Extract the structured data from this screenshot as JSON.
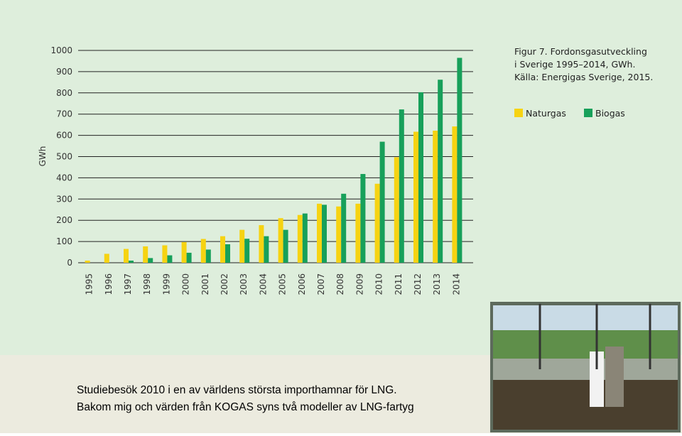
{
  "chart_data": {
    "type": "bar",
    "title_lines": [
      "Figur 7. Fordonsgasutveckling",
      "i Sverige 1995–2014, GWh.",
      "Källa: Energigas Sverige, 2015."
    ],
    "ylabel": "GWh",
    "categories": [
      "1995",
      "1996",
      "1997",
      "1998",
      "1999",
      "2000",
      "2001",
      "2002",
      "2003",
      "2004",
      "2005",
      "2006",
      "2007",
      "2008",
      "2009",
      "2010",
      "2011",
      "2012",
      "2013",
      "2014"
    ],
    "series": [
      {
        "name": "Naturgas",
        "color": "#f6d312",
        "values": [
          10,
          42,
          65,
          77,
          82,
          97,
          112,
          125,
          155,
          177,
          210,
          225,
          278,
          265,
          278,
          372,
          497,
          617,
          622,
          642
        ]
      },
      {
        "name": "Biogas",
        "color": "#17a05a",
        "values": [
          0,
          0,
          10,
          22,
          35,
          47,
          62,
          87,
          113,
          125,
          155,
          232,
          273,
          325,
          418,
          570,
          722,
          803,
          862,
          965
        ]
      }
    ],
    "ylim": [
      0,
      1000
    ],
    "yticks": [
      0,
      100,
      200,
      300,
      400,
      500,
      600,
      700,
      800,
      900,
      1000
    ],
    "grid": true
  },
  "caption": [
    "Studiebesök 2010 i en av världens största importhamnar för LNG.",
    "Bakom mig och värden från KOGAS syns två modeller av LNG-fartyg"
  ]
}
